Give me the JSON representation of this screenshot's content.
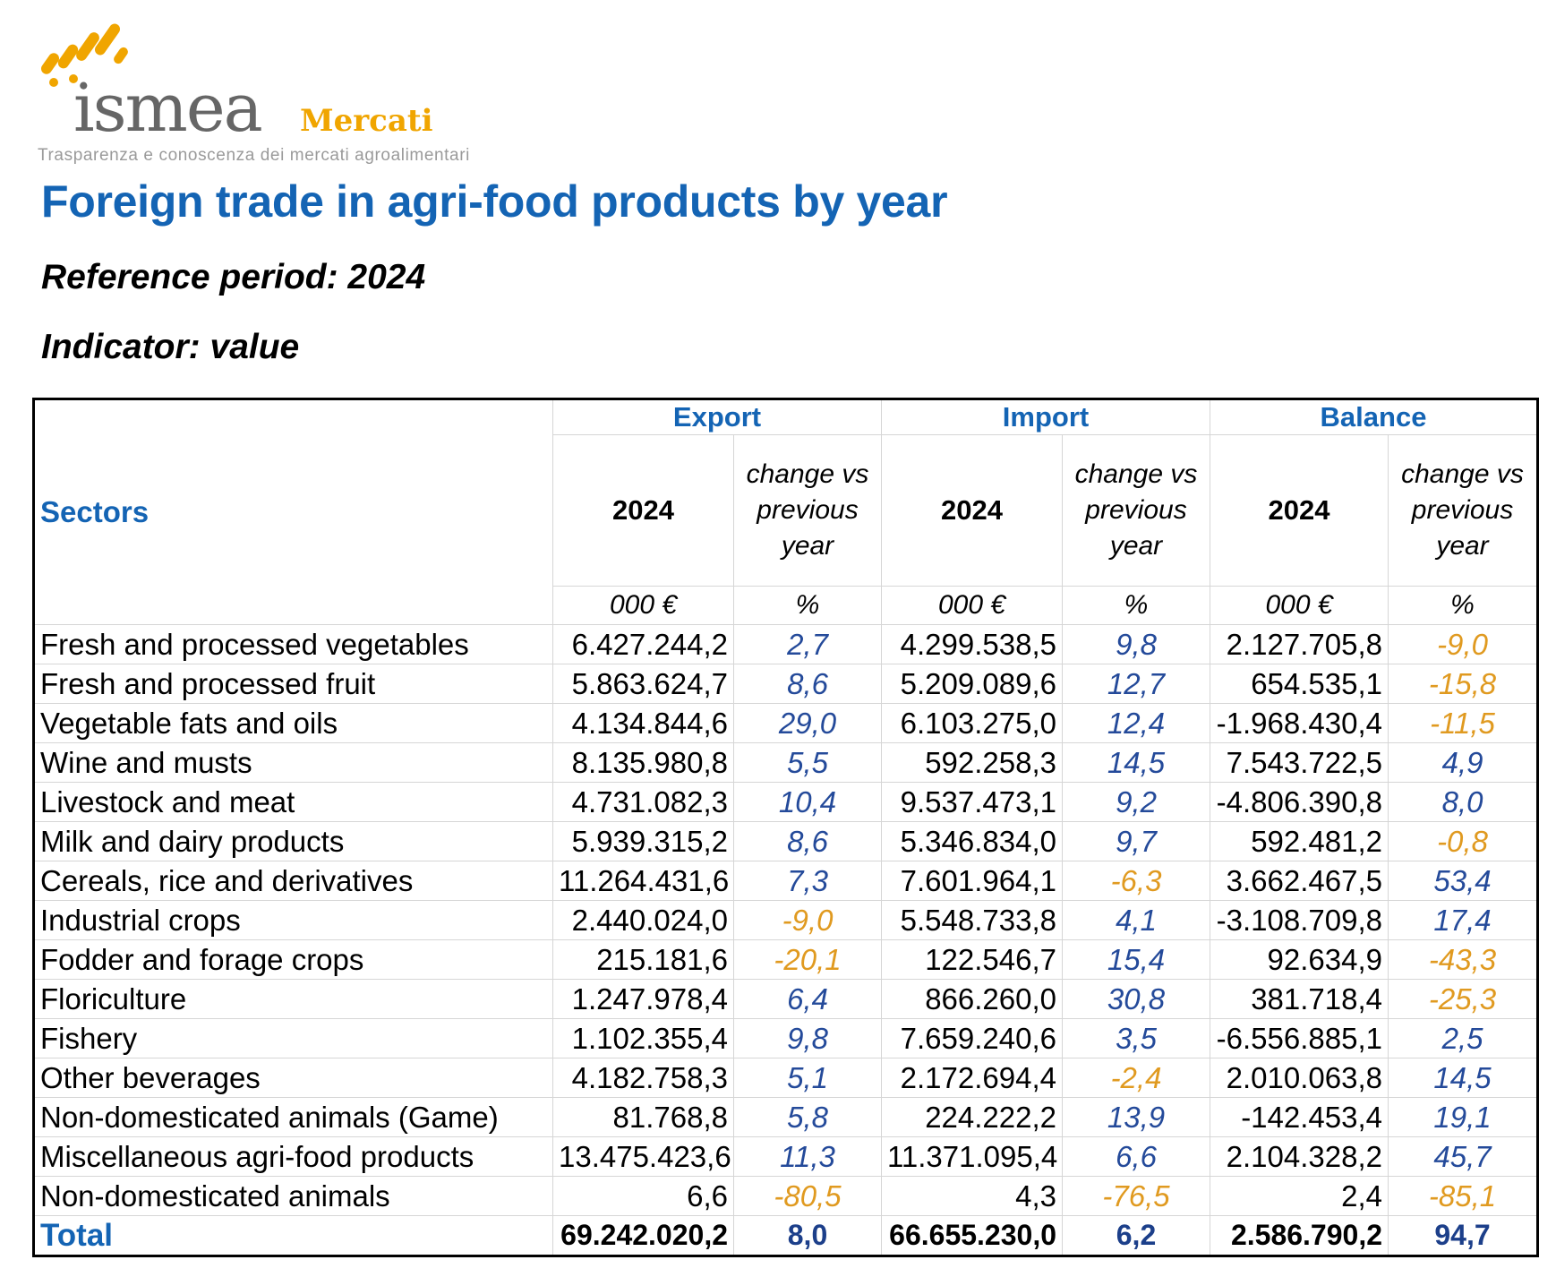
{
  "logo": {
    "wordmark": "ismea",
    "product": "Mercati",
    "tagline": "Trasparenza e conoscenza dei mercati agroalimentari",
    "colors": {
      "gray": "#666666",
      "orange": "#f0a500"
    }
  },
  "title": "Foreign trade in agri-food products by year",
  "reference_period": "Reference period: 2024",
  "indicator": "Indicator: value",
  "table": {
    "sectors_header": "Sectors",
    "groups": [
      "Export",
      "Import",
      "Balance"
    ],
    "year_header": "2024",
    "change_header": "change vs previous year",
    "unit_value": "000 €",
    "unit_pct": "%",
    "rows": [
      {
        "sector": "Fresh and processed vegetables",
        "exp": "6.427.244,2",
        "exp_chg": "2,7",
        "imp": "4.299.538,5",
        "imp_chg": "9,8",
        "bal": "2.127.705,8",
        "bal_chg": "-9,0"
      },
      {
        "sector": "Fresh and processed fruit",
        "exp": "5.863.624,7",
        "exp_chg": "8,6",
        "imp": "5.209.089,6",
        "imp_chg": "12,7",
        "bal": "654.535,1",
        "bal_chg": "-15,8"
      },
      {
        "sector": "Vegetable fats and oils",
        "exp": "4.134.844,6",
        "exp_chg": "29,0",
        "imp": "6.103.275,0",
        "imp_chg": "12,4",
        "bal": "-1.968.430,4",
        "bal_chg": "-11,5"
      },
      {
        "sector": "Wine and musts",
        "exp": "8.135.980,8",
        "exp_chg": "5,5",
        "imp": "592.258,3",
        "imp_chg": "14,5",
        "bal": "7.543.722,5",
        "bal_chg": "4,9"
      },
      {
        "sector": "Livestock and meat",
        "exp": "4.731.082,3",
        "exp_chg": "10,4",
        "imp": "9.537.473,1",
        "imp_chg": "9,2",
        "bal": "-4.806.390,8",
        "bal_chg": "8,0"
      },
      {
        "sector": "Milk and dairy products",
        "exp": "5.939.315,2",
        "exp_chg": "8,6",
        "imp": "5.346.834,0",
        "imp_chg": "9,7",
        "bal": "592.481,2",
        "bal_chg": "-0,8"
      },
      {
        "sector": "Cereals, rice and derivatives",
        "exp": "11.264.431,6",
        "exp_chg": "7,3",
        "imp": "7.601.964,1",
        "imp_chg": "-6,3",
        "bal": "3.662.467,5",
        "bal_chg": "53,4"
      },
      {
        "sector": "Industrial crops",
        "exp": "2.440.024,0",
        "exp_chg": "-9,0",
        "imp": "5.548.733,8",
        "imp_chg": "4,1",
        "bal": "-3.108.709,8",
        "bal_chg": "17,4"
      },
      {
        "sector": "Fodder and forage crops",
        "exp": "215.181,6",
        "exp_chg": "-20,1",
        "imp": "122.546,7",
        "imp_chg": "15,4",
        "bal": "92.634,9",
        "bal_chg": "-43,3"
      },
      {
        "sector": "Floriculture",
        "exp": "1.247.978,4",
        "exp_chg": "6,4",
        "imp": "866.260,0",
        "imp_chg": "30,8",
        "bal": "381.718,4",
        "bal_chg": "-25,3"
      },
      {
        "sector": "Fishery",
        "exp": "1.102.355,4",
        "exp_chg": "9,8",
        "imp": "7.659.240,6",
        "imp_chg": "3,5",
        "bal": "-6.556.885,1",
        "bal_chg": "2,5"
      },
      {
        "sector": "Other beverages",
        "exp": "4.182.758,3",
        "exp_chg": "5,1",
        "imp": "2.172.694,4",
        "imp_chg": "-2,4",
        "bal": "2.010.063,8",
        "bal_chg": "14,5"
      },
      {
        "sector": "Non-domesticated animals (Game)",
        "exp": "81.768,8",
        "exp_chg": "5,8",
        "imp": "224.222,2",
        "imp_chg": "13,9",
        "bal": "-142.453,4",
        "bal_chg": "19,1"
      },
      {
        "sector": "Miscellaneous agri-food products",
        "exp": "13.475.423,6",
        "exp_chg": "11,3",
        "imp": "11.371.095,4",
        "imp_chg": "6,6",
        "bal": "2.104.328,2",
        "bal_chg": "45,7"
      },
      {
        "sector": "Non-domesticated animals",
        "exp": "6,6",
        "exp_chg": "-80,5",
        "imp": "4,3",
        "imp_chg": "-76,5",
        "bal": "2,4",
        "bal_chg": "-85,1"
      }
    ],
    "total": {
      "sector": "Total",
      "exp": "69.242.020,2",
      "exp_chg": "8,0",
      "imp": "66.655.230,0",
      "imp_chg": "6,2",
      "bal": "2.586.790,2",
      "bal_chg": "94,7"
    },
    "colors": {
      "heading_blue": "#1464b4",
      "positive": "#244a9a",
      "negative": "#e09a20"
    }
  }
}
